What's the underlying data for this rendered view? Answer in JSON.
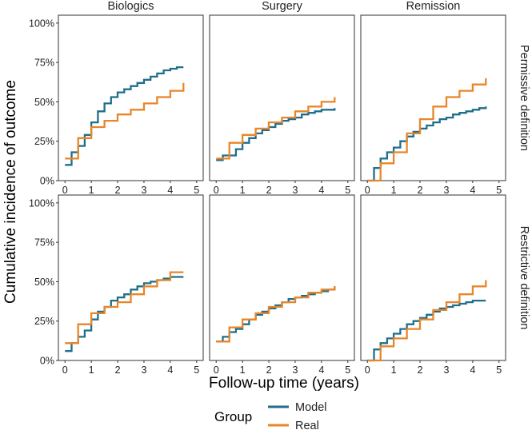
{
  "chart_data": {
    "type": "line",
    "step": true,
    "facet_columns": [
      "Biologics",
      "Surgery",
      "Remission"
    ],
    "facet_rows": [
      "Permissive definition",
      "Restrictive definition"
    ],
    "xlabel": "Follow-up time (years)",
    "ylabel": "Cumulative incidence of outcome",
    "xlim": [
      -0.25,
      5.25
    ],
    "ylim": [
      0,
      1.05
    ],
    "x_ticks": [
      0,
      1,
      2,
      3,
      4,
      5
    ],
    "x_tick_labels": [
      "0",
      "1",
      "2",
      "3",
      "4",
      "5"
    ],
    "y_ticks": [
      0,
      0.25,
      0.5,
      0.75,
      1.0
    ],
    "y_tick_labels": [
      "0%",
      "25%",
      "50%",
      "75%",
      "100%"
    ],
    "legend": {
      "title": "Group",
      "position": "bottom",
      "entries": [
        {
          "name": "Model",
          "color": "#1f6f8b"
        },
        {
          "name": "Real",
          "color": "#e8862a"
        }
      ]
    },
    "panels": [
      {
        "row": "Permissive definition",
        "col": "Biologics",
        "series": [
          {
            "name": "Model",
            "x": [
              0,
              0.25,
              0.5,
              0.75,
              1.0,
              1.25,
              1.5,
              1.75,
              2.0,
              2.25,
              2.5,
              2.75,
              3.0,
              3.25,
              3.5,
              3.75,
              4.0,
              4.25,
              4.5
            ],
            "y": [
              0.1,
              0.18,
              0.22,
              0.29,
              0.37,
              0.44,
              0.49,
              0.53,
              0.56,
              0.58,
              0.6,
              0.62,
              0.64,
              0.66,
              0.68,
              0.7,
              0.71,
              0.72,
              0.72
            ]
          },
          {
            "name": "Real",
            "x": [
              0,
              0.25,
              0.5,
              1.0,
              1.5,
              2.0,
              2.5,
              3.0,
              3.5,
              4.0,
              4.5
            ],
            "y": [
              0.14,
              0.14,
              0.27,
              0.34,
              0.38,
              0.42,
              0.45,
              0.49,
              0.53,
              0.57,
              0.62
            ]
          }
        ]
      },
      {
        "row": "Permissive definition",
        "col": "Surgery",
        "series": [
          {
            "name": "Model",
            "x": [
              0,
              0.25,
              0.5,
              0.75,
              1.0,
              1.25,
              1.5,
              1.75,
              2.0,
              2.25,
              2.5,
              2.75,
              3.0,
              3.25,
              3.5,
              3.75,
              4.0,
              4.25,
              4.5
            ],
            "y": [
              0.13,
              0.16,
              0.16,
              0.2,
              0.24,
              0.27,
              0.3,
              0.32,
              0.34,
              0.36,
              0.38,
              0.39,
              0.4,
              0.42,
              0.43,
              0.44,
              0.45,
              0.45,
              0.46
            ]
          },
          {
            "name": "Real",
            "x": [
              0,
              0.5,
              1.0,
              1.5,
              2.0,
              2.5,
              3.0,
              3.5,
              4.0,
              4.5
            ],
            "y": [
              0.14,
              0.24,
              0.29,
              0.33,
              0.37,
              0.4,
              0.44,
              0.47,
              0.5,
              0.53
            ]
          }
        ]
      },
      {
        "row": "Permissive definition",
        "col": "Remission",
        "series": [
          {
            "name": "Model",
            "x": [
              0,
              0.25,
              0.5,
              0.75,
              1.0,
              1.25,
              1.5,
              1.75,
              2.0,
              2.25,
              2.5,
              2.75,
              3.0,
              3.25,
              3.5,
              3.75,
              4.0,
              4.25,
              4.5
            ],
            "y": [
              0,
              0.08,
              0.14,
              0.18,
              0.21,
              0.25,
              0.28,
              0.31,
              0.33,
              0.35,
              0.37,
              0.39,
              0.4,
              0.42,
              0.43,
              0.44,
              0.45,
              0.46,
              0.47
            ]
          },
          {
            "name": "Real",
            "x": [
              0,
              0.5,
              1.0,
              1.5,
              2.0,
              2.5,
              3.0,
              3.5,
              4.0,
              4.5
            ],
            "y": [
              0,
              0.11,
              0.18,
              0.3,
              0.39,
              0.47,
              0.53,
              0.57,
              0.61,
              0.65
            ]
          }
        ]
      },
      {
        "row": "Restrictive definition",
        "col": "Biologics",
        "series": [
          {
            "name": "Model",
            "x": [
              0,
              0.25,
              0.5,
              0.75,
              1.0,
              1.25,
              1.5,
              1.75,
              2.0,
              2.25,
              2.5,
              2.75,
              3.0,
              3.25,
              3.5,
              3.75,
              4.0,
              4.25,
              4.5
            ],
            "y": [
              0.06,
              0.11,
              0.15,
              0.19,
              0.26,
              0.31,
              0.34,
              0.38,
              0.4,
              0.42,
              0.45,
              0.47,
              0.49,
              0.5,
              0.51,
              0.52,
              0.53,
              0.53,
              0.53
            ]
          },
          {
            "name": "Real",
            "x": [
              0,
              0.25,
              0.5,
              1.0,
              1.5,
              2.0,
              2.5,
              3.0,
              3.5,
              4.0,
              4.5
            ],
            "y": [
              0.11,
              0.11,
              0.23,
              0.3,
              0.34,
              0.37,
              0.42,
              0.47,
              0.51,
              0.56,
              0.56
            ]
          }
        ]
      },
      {
        "row": "Restrictive definition",
        "col": "Surgery",
        "series": [
          {
            "name": "Model",
            "x": [
              0,
              0.25,
              0.5,
              0.75,
              1.0,
              1.25,
              1.5,
              1.75,
              2.0,
              2.25,
              2.5,
              2.75,
              3.0,
              3.25,
              3.5,
              3.75,
              4.0,
              4.25,
              4.5
            ],
            "y": [
              0.12,
              0.15,
              0.18,
              0.2,
              0.23,
              0.26,
              0.29,
              0.31,
              0.33,
              0.35,
              0.37,
              0.39,
              0.4,
              0.41,
              0.42,
              0.43,
              0.44,
              0.45,
              0.47
            ]
          },
          {
            "name": "Real",
            "x": [
              0,
              0.5,
              1.0,
              1.5,
              2.0,
              2.5,
              3.0,
              3.5,
              4.0,
              4.5
            ],
            "y": [
              0.12,
              0.21,
              0.26,
              0.3,
              0.34,
              0.37,
              0.4,
              0.43,
              0.45,
              0.47
            ]
          }
        ]
      },
      {
        "row": "Restrictive definition",
        "col": "Remission",
        "series": [
          {
            "name": "Model",
            "x": [
              0,
              0.25,
              0.5,
              0.75,
              1.0,
              1.25,
              1.5,
              1.75,
              2.0,
              2.25,
              2.5,
              2.75,
              3.0,
              3.25,
              3.5,
              3.75,
              4.0,
              4.25,
              4.5
            ],
            "y": [
              0,
              0.07,
              0.11,
              0.14,
              0.17,
              0.2,
              0.23,
              0.25,
              0.27,
              0.29,
              0.31,
              0.33,
              0.34,
              0.35,
              0.36,
              0.37,
              0.38,
              0.38,
              0.38
            ]
          },
          {
            "name": "Real",
            "x": [
              0,
              0.5,
              1.0,
              1.5,
              2.0,
              2.5,
              3.0,
              3.5,
              4.0,
              4.5
            ],
            "y": [
              0,
              0.09,
              0.14,
              0.2,
              0.26,
              0.32,
              0.37,
              0.42,
              0.47,
              0.51
            ]
          }
        ]
      }
    ]
  }
}
